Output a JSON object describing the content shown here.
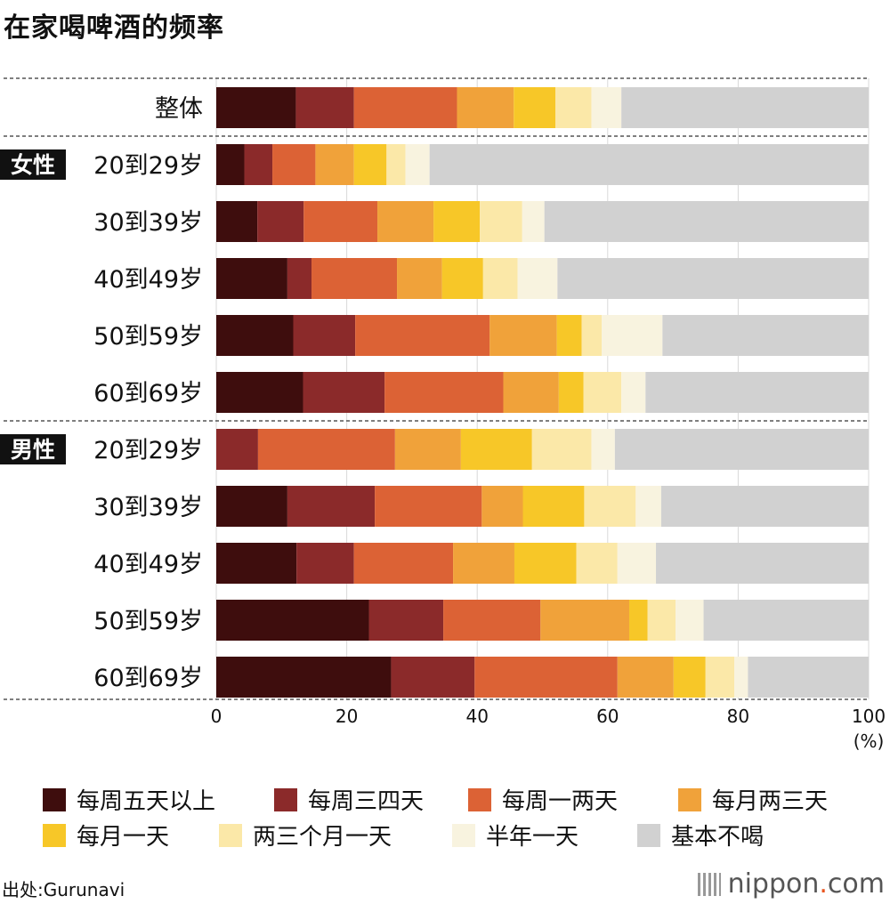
{
  "chart_data": {
    "type": "bar",
    "orientation": "horizontal",
    "stacked": true,
    "title": "在家喝啤酒的频率",
    "xlabel": "(%)",
    "xlim": [
      0,
      100
    ],
    "xticks": [
      0,
      20,
      40,
      60,
      80,
      100
    ],
    "grid": true,
    "legend_position": "bottom",
    "groups": [
      {
        "label": "",
        "rows": [
          "整体"
        ]
      },
      {
        "label": "女性",
        "rows": [
          "20到29岁",
          "30到39岁",
          "40到49岁",
          "50到59岁",
          "60到69岁"
        ]
      },
      {
        "label": "男性",
        "rows": [
          "20到29岁",
          "30到39岁",
          "40到49岁",
          "50到59岁",
          "60到69岁"
        ]
      }
    ],
    "categories": [
      "整体",
      "20到29岁",
      "30到39岁",
      "40到49岁",
      "50到59岁",
      "60到69岁",
      "20到29岁",
      "30到39岁",
      "40到49岁",
      "50到59岁",
      "60到69岁"
    ],
    "series": [
      {
        "name": "每周五天以上",
        "color": "#3e0d0d",
        "values": [
          12.2,
          4.3,
          6.3,
          10.9,
          11.8,
          13.3,
          0.0,
          10.9,
          12.3,
          23.4,
          26.8
        ]
      },
      {
        "name": "每周三四天",
        "color": "#8b2a2a",
        "values": [
          8.9,
          4.3,
          7.1,
          3.7,
          9.5,
          12.5,
          6.4,
          13.4,
          8.8,
          11.4,
          12.8
        ]
      },
      {
        "name": "每周一两天",
        "color": "#dc6235",
        "values": [
          15.8,
          6.6,
          11.3,
          13.1,
          20.6,
          18.2,
          21.0,
          16.4,
          15.2,
          14.9,
          21.9
        ]
      },
      {
        "name": "每月两三天",
        "color": "#f0a23a",
        "values": [
          8.7,
          5.9,
          8.6,
          6.9,
          10.3,
          8.5,
          10.1,
          6.3,
          9.4,
          13.6,
          8.6
        ]
      },
      {
        "name": "每月一天",
        "color": "#f7c728",
        "values": [
          6.4,
          5.0,
          7.1,
          6.3,
          3.8,
          3.8,
          10.9,
          9.4,
          9.5,
          2.8,
          4.9
        ]
      },
      {
        "name": "两三个月一天",
        "color": "#fbe8a8",
        "values": [
          5.5,
          2.9,
          6.5,
          5.3,
          3.1,
          5.8,
          9.1,
          7.9,
          6.3,
          4.3,
          4.4
        ]
      },
      {
        "name": "半年一天",
        "color": "#f8f3df",
        "values": [
          4.6,
          3.7,
          3.4,
          6.1,
          9.3,
          3.7,
          3.6,
          3.9,
          5.9,
          4.3,
          2.1
        ]
      },
      {
        "name": "基本不喝",
        "color": "#d1d1d1",
        "values": [
          37.9,
          67.3,
          49.7,
          47.7,
          31.6,
          34.2,
          38.9,
          31.8,
          32.6,
          25.3,
          18.5
        ]
      }
    ]
  },
  "source": "出处:Gurunavi",
  "brand": {
    "name": "nippon",
    "dot": ".",
    "suffix": "com"
  }
}
